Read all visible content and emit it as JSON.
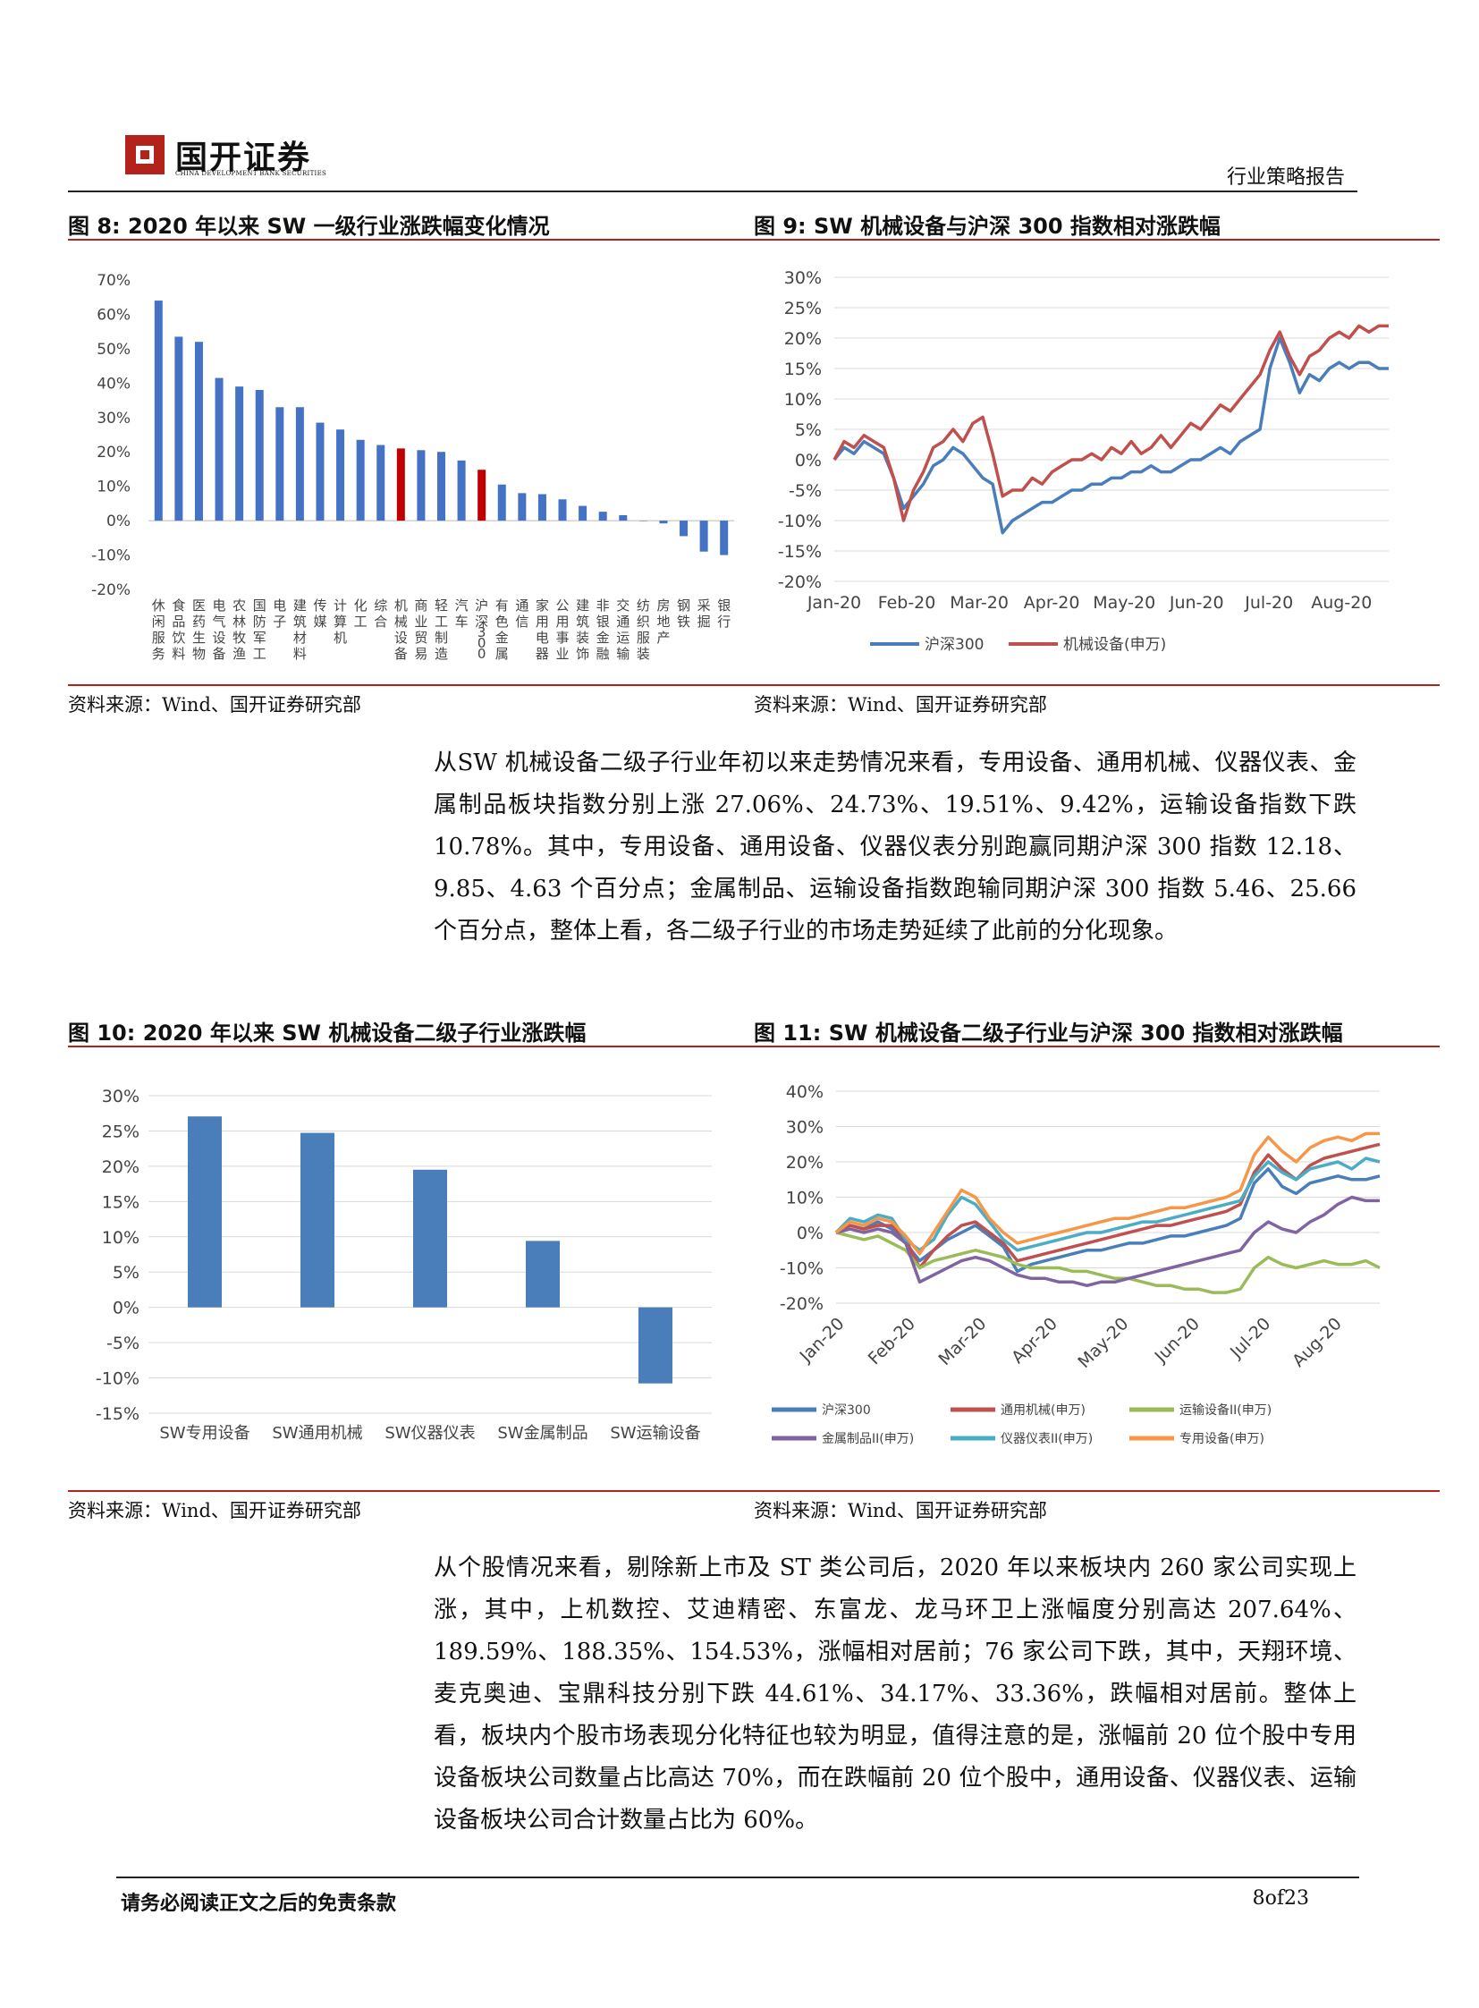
{
  "header": {
    "brand": "国开证券",
    "brand_sub": "CHINA DEVELOPMENT BANK SECURITIES",
    "report_type": "行业策略报告"
  },
  "figures": {
    "fig8_title": "图 8:  2020 年以来 SW 一级行业涨跌幅变化情况",
    "fig9_title": "图 9:  SW 机械设备与沪深 300 指数相对涨跌幅",
    "fig10_title": "图 10:  2020 年以来 SW 机械设备二级子行业涨跌幅",
    "fig11_title": "图 11:  SW 机械设备二级子行业与沪深 300 指数相对涨跌幅",
    "source": "资料来源：Wind、国开证券研究部"
  },
  "paragraphs": {
    "p1": "从SW 机械设备二级子行业年初以来走势情况来看，专用设备、通用机械、仪器仪表、金属制品板块指数分别上涨 27.06%、24.73%、19.51%、9.42%，运输设备指数下跌 10.78%。其中，专用设备、通用设备、仪器仪表分别跑赢同期沪深 300 指数 12.18、9.85、4.63 个百分点；金属制品、运输设备指数跑输同期沪深 300 指数 5.46、25.66 个百分点，整体上看，各二级子行业的市场走势延续了此前的分化现象。",
    "p2": "从个股情况来看，剔除新上市及 ST 类公司后，2020 年以来板块内 260 家公司实现上涨，其中，上机数控、艾迪精密、东富龙、龙马环卫上涨幅度分别高达 207.64%、189.59%、188.35%、154.53%，涨幅相对居前；76 家公司下跌，其中，天翔环境、麦克奥迪、宝鼎科技分别下跌 44.61%、34.17%、33.36%，跌幅相对居前。整体上看，板块内个股市场表现分化特征也较为明显，值得注意的是，涨幅前 20 位个股中专用设备板块公司数量占比高达 70%，而在跌幅前 20 位个股中，通用设备、仪器仪表、运输设备板块公司合计数量占比为 60%。"
  },
  "footer": {
    "disclaimer": "请务必阅读正文之后的免责条款",
    "page": "8of23"
  },
  "chart_data": [
    {
      "id": "fig8",
      "type": "bar",
      "title": "",
      "ylim": [
        -20,
        70
      ],
      "yticks": [
        "70%",
        "60%",
        "50%",
        "40%",
        "30%",
        "20%",
        "10%",
        "0%",
        "-10%",
        "-20%"
      ],
      "categories": [
        "休闲服务",
        "食品饮料",
        "医药生物",
        "电气设备",
        "农林牧渔",
        "国防军工",
        "电子",
        "建筑材料",
        "传媒",
        "计算机",
        "化工",
        "综合",
        "机械设备",
        "商业贸易",
        "轻工制造",
        "汽车",
        "沪深300",
        "有色金属",
        "通信",
        "家用电器",
        "公用事业",
        "建筑装饰",
        "非银金融",
        "交通运输",
        "纺织服装",
        "房地产",
        "钢铁",
        "采掘",
        "银行"
      ],
      "values": [
        64,
        53.5,
        52,
        41.5,
        39,
        38,
        33,
        33,
        28.5,
        26.5,
        23.5,
        22,
        21,
        20.5,
        20,
        17.5,
        14.8,
        10.5,
        8,
        7.7,
        6.2,
        4.3,
        2.6,
        1.6,
        0,
        -0.8,
        -4.5,
        -9,
        -10
      ],
      "highlight": [
        "机械设备",
        "沪深300"
      ],
      "colors": {
        "bar": "#4472c4",
        "highlight": "#c00000"
      }
    },
    {
      "id": "fig9",
      "type": "line",
      "title": "",
      "ylim": [
        -20,
        30
      ],
      "yticks": [
        "30%",
        "25%",
        "20%",
        "15%",
        "10%",
        "5%",
        "0%",
        "-5%",
        "-10%",
        "-15%",
        "-20%"
      ],
      "xticks": [
        "Jan-20",
        "Feb-20",
        "Mar-20",
        "Apr-20",
        "May-20",
        "Jun-20",
        "Jul-20",
        "Aug-20"
      ],
      "series": [
        {
          "name": "沪深300",
          "color": "#4a7ebb",
          "values": [
            0,
            2,
            1,
            3,
            2,
            1,
            -3,
            -8,
            -6,
            -4,
            -1,
            0,
            2,
            1,
            -1,
            -3,
            -4,
            -12,
            -10,
            -9,
            -8,
            -7,
            -7,
            -6,
            -5,
            -5,
            -4,
            -4,
            -3,
            -3,
            -2,
            -2,
            -1,
            -2,
            -2,
            -1,
            0,
            0,
            1,
            2,
            1,
            3,
            4,
            5,
            15,
            20,
            16,
            11,
            14,
            13,
            15,
            16,
            15,
            16,
            16,
            15,
            15
          ]
        },
        {
          "name": "机械设备(申万)",
          "color": "#c0504d",
          "values": [
            0,
            3,
            2,
            4,
            3,
            2,
            -3,
            -10,
            -5,
            -2,
            2,
            3,
            5,
            3,
            6,
            7,
            1,
            -6,
            -5,
            -5,
            -3,
            -4,
            -2,
            -1,
            0,
            0,
            1,
            0,
            2,
            1,
            3,
            1,
            2,
            4,
            2,
            4,
            6,
            5,
            7,
            9,
            8,
            10,
            12,
            14,
            18,
            21,
            17,
            14,
            17,
            18,
            20,
            21,
            20,
            22,
            21,
            22,
            22
          ]
        }
      ]
    },
    {
      "id": "fig10",
      "type": "bar",
      "title": "",
      "ylim": [
        -15,
        30
      ],
      "yticks": [
        "30%",
        "25%",
        "20%",
        "15%",
        "10%",
        "5%",
        "0%",
        "-5%",
        "-10%",
        "-15%"
      ],
      "categories": [
        "SW专用设备",
        "SW通用机械",
        "SW仪器仪表",
        "SW金属制品",
        "SW运输设备"
      ],
      "values": [
        27.06,
        24.73,
        19.51,
        9.42,
        -10.78
      ],
      "colors": {
        "bar": "#4a7ebb"
      }
    },
    {
      "id": "fig11",
      "type": "line",
      "title": "",
      "ylim": [
        -20,
        40
      ],
      "yticks": [
        "40%",
        "30%",
        "20%",
        "10%",
        "0%",
        "-10%",
        "-20%"
      ],
      "xticks": [
        "Jan-20",
        "Feb-20",
        "Mar-20",
        "Apr-20",
        "May-20",
        "Jun-20",
        "Jul-20",
        "Aug-20"
      ],
      "series": [
        {
          "name": "沪深300",
          "color": "#4a7ebb",
          "values": [
            0,
            2,
            1,
            3,
            1,
            -3,
            -8,
            -5,
            -2,
            0,
            2,
            -1,
            -4,
            -11,
            -9,
            -8,
            -7,
            -6,
            -5,
            -5,
            -4,
            -3,
            -3,
            -2,
            -1,
            -1,
            0,
            1,
            2,
            4,
            14,
            18,
            13,
            11,
            14,
            15,
            16,
            15,
            15,
            16
          ]
        },
        {
          "name": "通用机械(申万)",
          "color": "#c0504d",
          "values": [
            0,
            2,
            1,
            2,
            2,
            -2,
            -10,
            -5,
            -1,
            2,
            3,
            0,
            -3,
            -8,
            -7,
            -6,
            -5,
            -4,
            -3,
            -2,
            -1,
            0,
            1,
            2,
            2,
            3,
            4,
            5,
            6,
            8,
            17,
            22,
            18,
            15,
            19,
            21,
            22,
            23,
            24,
            25
          ]
        },
        {
          "name": "运输设备II(申万)",
          "color": "#9bbb59",
          "values": [
            0,
            -1,
            -2,
            -1,
            -3,
            -5,
            -10,
            -8,
            -7,
            -6,
            -5,
            -6,
            -7,
            -9,
            -10,
            -10,
            -10,
            -11,
            -11,
            -12,
            -13,
            -13,
            -14,
            -15,
            -15,
            -16,
            -16,
            -17,
            -17,
            -16,
            -10,
            -7,
            -9,
            -10,
            -9,
            -8,
            -9,
            -9,
            -8,
            -10
          ]
        },
        {
          "name": "金属制品II(申万)",
          "color": "#8064a2",
          "values": [
            0,
            1,
            0,
            1,
            0,
            -3,
            -14,
            -12,
            -10,
            -8,
            -7,
            -8,
            -10,
            -12,
            -13,
            -13,
            -14,
            -14,
            -15,
            -14,
            -14,
            -13,
            -12,
            -11,
            -10,
            -9,
            -8,
            -7,
            -6,
            -5,
            0,
            3,
            1,
            0,
            3,
            5,
            8,
            10,
            9,
            9
          ]
        },
        {
          "name": "仪器仪表II(申万)",
          "color": "#4bacc6",
          "values": [
            0,
            4,
            3,
            5,
            4,
            -2,
            -5,
            -2,
            5,
            10,
            8,
            3,
            -2,
            -5,
            -4,
            -3,
            -2,
            -1,
            0,
            0,
            1,
            2,
            3,
            3,
            4,
            5,
            6,
            7,
            8,
            9,
            16,
            20,
            17,
            15,
            18,
            19,
            20,
            18,
            21,
            20
          ]
        },
        {
          "name": "专用设备(申万)",
          "color": "#f79646",
          "values": [
            0,
            3,
            2,
            4,
            3,
            -1,
            -6,
            0,
            6,
            12,
            10,
            4,
            0,
            -3,
            -2,
            -1,
            0,
            1,
            2,
            3,
            4,
            4,
            5,
            6,
            7,
            7,
            8,
            9,
            10,
            12,
            22,
            27,
            23,
            20,
            24,
            26,
            27,
            26,
            28,
            28
          ]
        }
      ]
    }
  ]
}
